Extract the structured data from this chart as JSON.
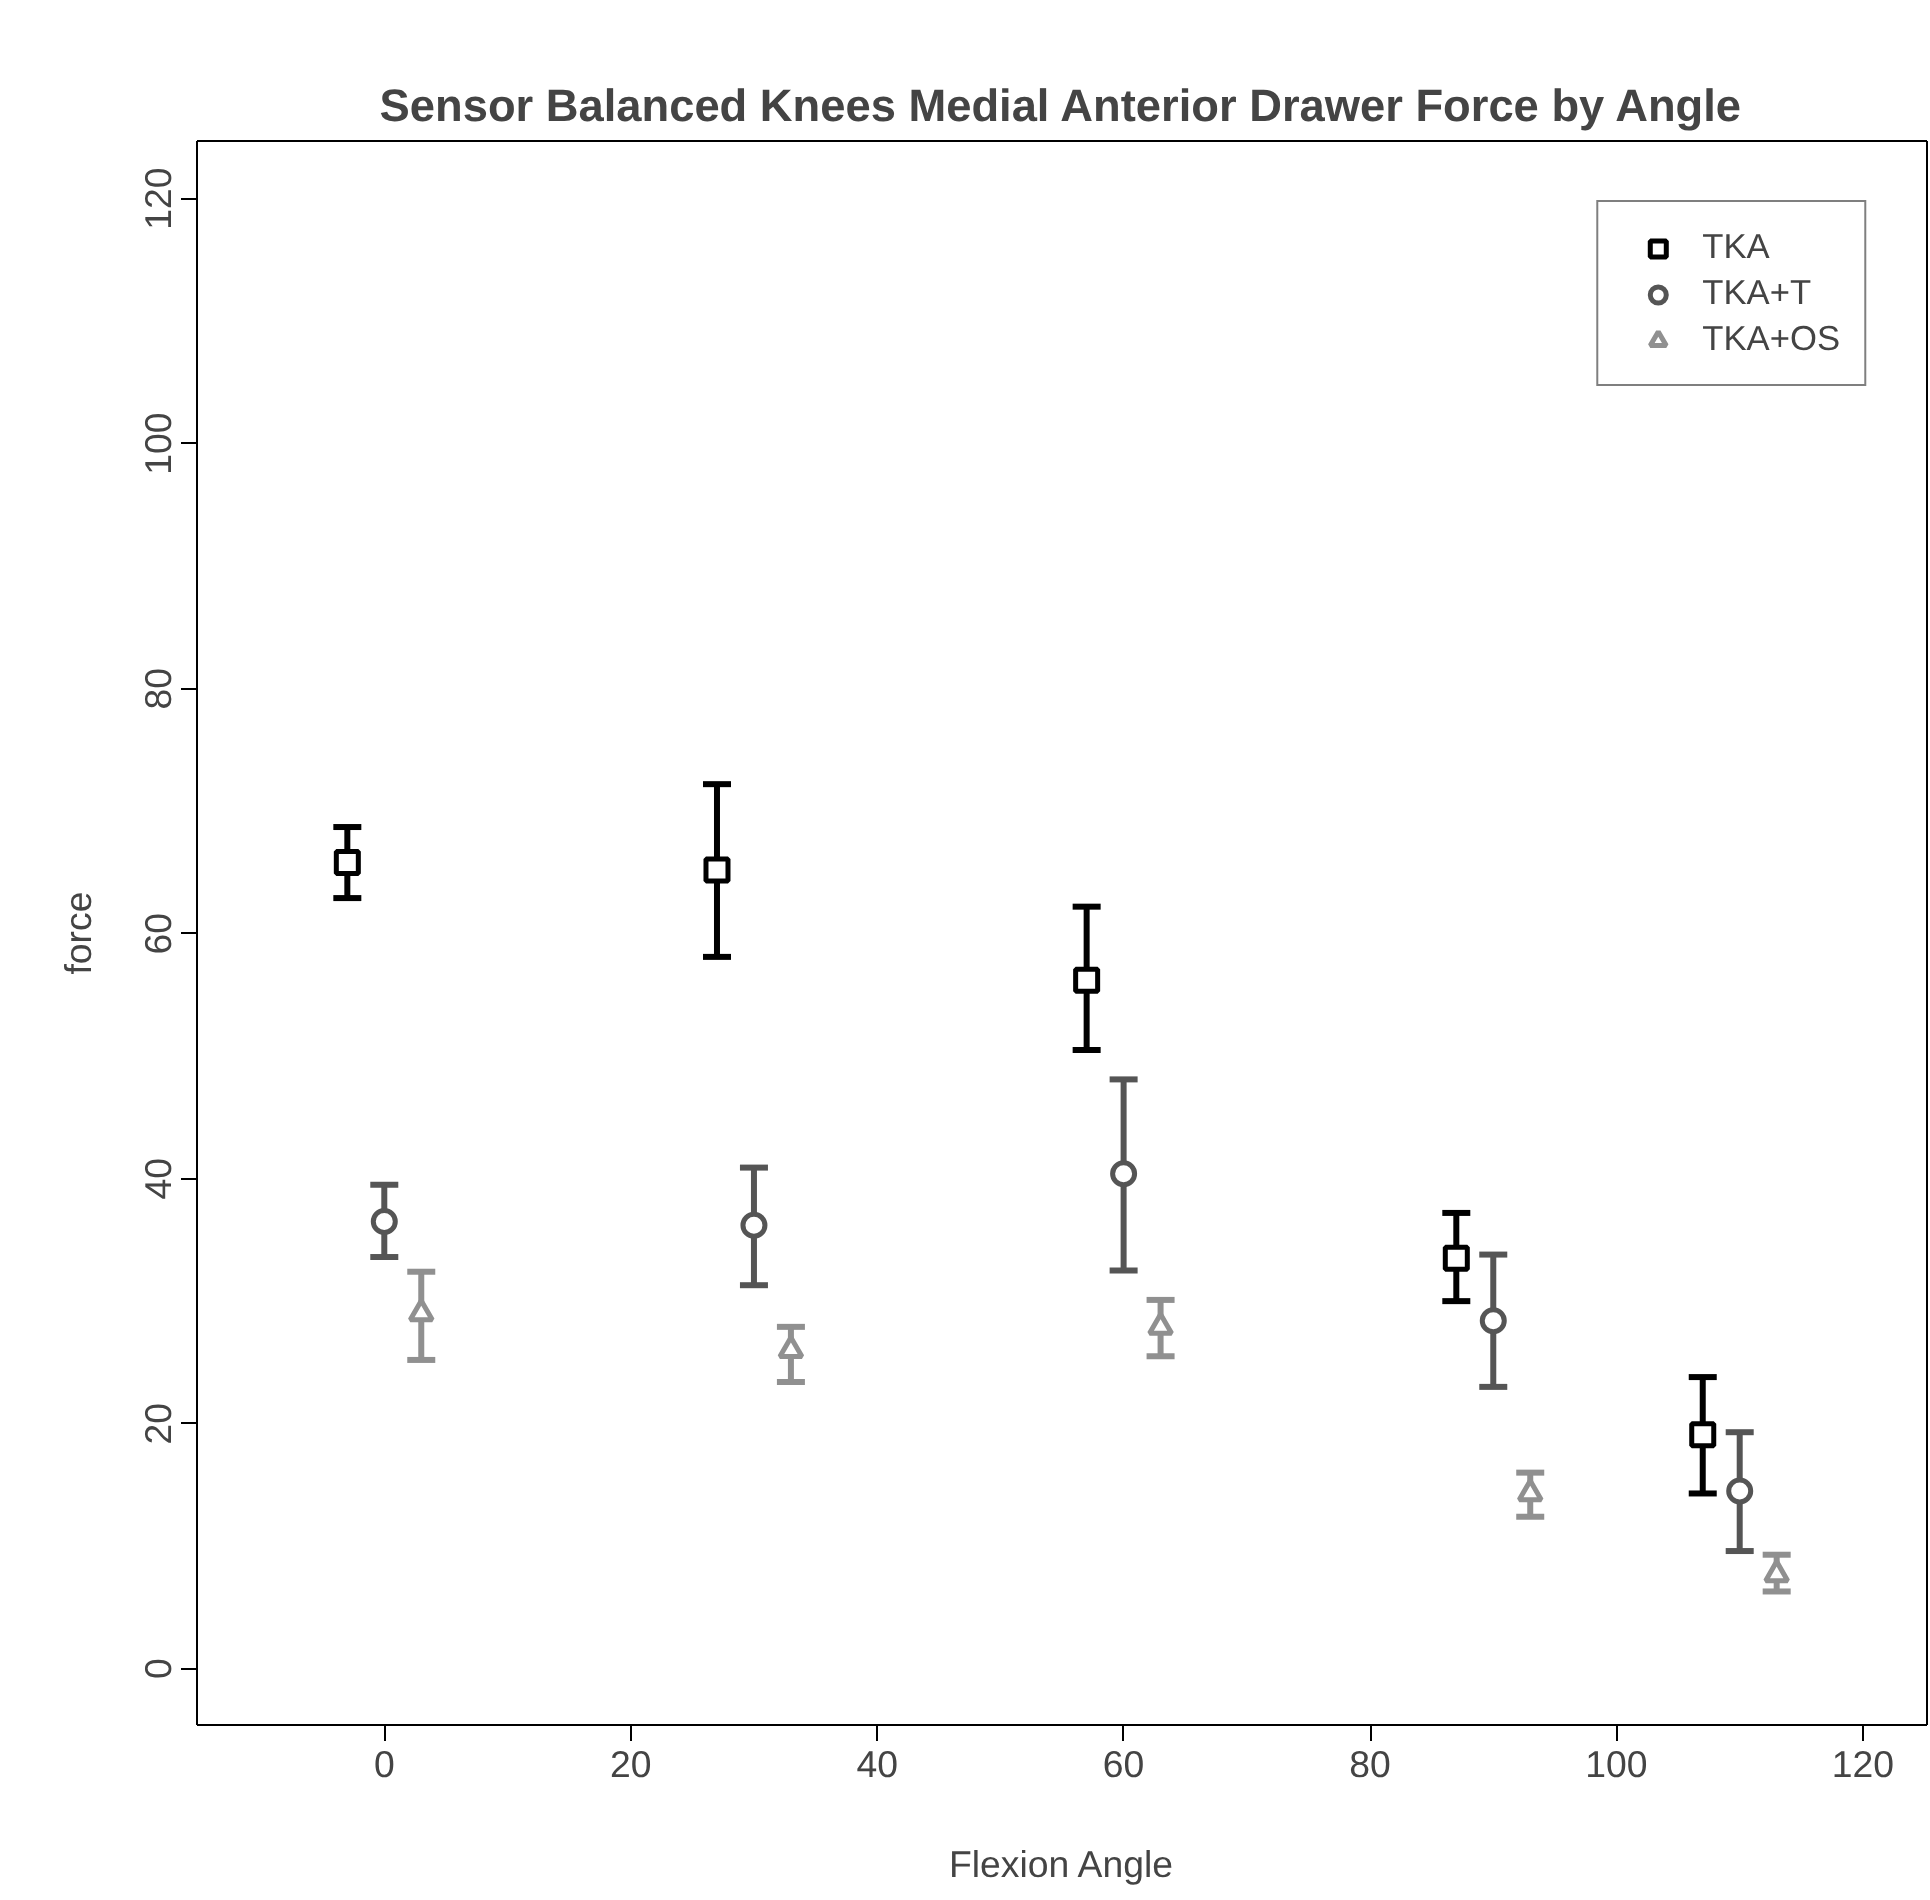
{
  "chart_data": {
    "type": "scatter",
    "title": "Sensor Balanced Knees Medial Anterior Drawer Force by Angle",
    "xlabel": "Flexion Angle",
    "ylabel": "force",
    "xlim": [
      -15.2,
      125.2
    ],
    "ylim": [
      -4.6,
      124.7
    ],
    "xticks": [
      0,
      20,
      40,
      60,
      80,
      100,
      120
    ],
    "yticks": [
      0,
      20,
      40,
      60,
      80,
      100,
      120
    ],
    "grid": false,
    "legend": "top right",
    "series": [
      {
        "name": "TKA",
        "color": "#000000",
        "marker": "square",
        "x": [
          -3,
          27,
          57,
          87,
          107
        ],
        "values": [
          65.8,
          65.2,
          56.2,
          33.5,
          19.1
        ],
        "errors": [
          [
            62.9,
            68.7
          ],
          [
            58.1,
            72.2
          ],
          [
            50.5,
            62.2
          ],
          [
            30.0,
            37.2
          ],
          [
            14.3,
            23.8
          ]
        ]
      },
      {
        "name": "TKA+T",
        "color": "#555555",
        "marker": "circle",
        "x": [
          0,
          30,
          60,
          90,
          110
        ],
        "values": [
          36.5,
          36.2,
          40.4,
          28.4,
          14.5
        ],
        "errors": [
          [
            33.6,
            39.5
          ],
          [
            31.3,
            40.9
          ],
          [
            32.5,
            48.1
          ],
          [
            23.0,
            33.8
          ],
          [
            9.6,
            19.3
          ]
        ]
      },
      {
        "name": "TKA+OS",
        "color": "#909090",
        "marker": "triangle",
        "x": [
          3,
          33,
          63,
          93,
          113
        ],
        "values": [
          29.0,
          26.0,
          27.9,
          14.3,
          7.7
        ],
        "errors": [
          [
            25.2,
            32.4
          ],
          [
            23.4,
            27.9
          ],
          [
            25.5,
            30.1
          ],
          [
            12.4,
            16.0
          ],
          [
            6.3,
            9.3
          ]
        ]
      }
    ]
  }
}
